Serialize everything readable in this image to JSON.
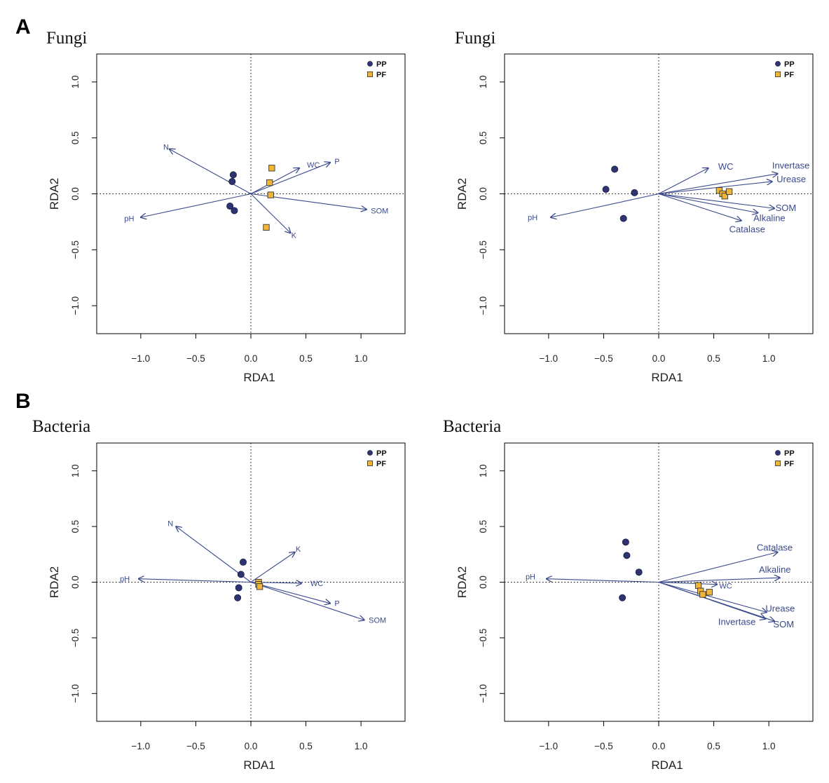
{
  "panels": [
    {
      "letter": "A"
    },
    {
      "letter": "B"
    }
  ],
  "colors": {
    "PP": "#2e3470",
    "PF": "#f2b534",
    "arrow": "#3a4a8c",
    "axis": "#000000"
  },
  "chart_data": [
    {
      "type": "scatter",
      "title": "Fungi",
      "xlabel": "RDA1",
      "ylabel": "RDA2",
      "xticks": [
        -1.0,
        -0.5,
        0.0,
        0.5,
        1.0
      ],
      "yticks": [
        -1.0,
        -0.5,
        0.0,
        0.5,
        1.0
      ],
      "xlim": [
        -1.4,
        1.4
      ],
      "ylim": [
        -1.25,
        1.25
      ],
      "legend": [
        {
          "name": "PP",
          "shape": "circle"
        },
        {
          "name": "PF",
          "shape": "square"
        }
      ],
      "series": [
        {
          "name": "PP",
          "points": [
            [
              -0.16,
              0.17
            ],
            [
              -0.17,
              0.11
            ],
            [
              -0.19,
              -0.11
            ],
            [
              -0.15,
              -0.15
            ]
          ]
        },
        {
          "name": "PF",
          "points": [
            [
              0.19,
              0.23
            ],
            [
              0.17,
              0.1
            ],
            [
              0.18,
              -0.01
            ],
            [
              0.14,
              -0.3
            ]
          ]
        }
      ],
      "vectors": [
        {
          "label": "N",
          "x": -0.74,
          "y": 0.4,
          "lx": -0.77,
          "ly": 0.42
        },
        {
          "label": "WC",
          "x": 0.44,
          "y": 0.23,
          "lx": 0.51,
          "ly": 0.26
        },
        {
          "label": "P",
          "x": 0.72,
          "y": 0.28,
          "lx": 0.76,
          "ly": 0.29
        },
        {
          "label": "SOM",
          "x": 1.05,
          "y": -0.14,
          "lx": 1.09,
          "ly": -0.15
        },
        {
          "label": "K",
          "x": 0.36,
          "y": -0.35,
          "lx": 0.39,
          "ly": -0.37
        },
        {
          "label": "pH",
          "x": -1.0,
          "y": -0.21,
          "lx": -1.06,
          "ly": -0.22
        }
      ]
    },
    {
      "type": "scatter",
      "title": "Fungi",
      "xlabel": "RDA1",
      "ylabel": "RDA2",
      "xticks": [
        -1.0,
        -0.5,
        0.0,
        0.5,
        1.0
      ],
      "yticks": [
        -1.0,
        -0.5,
        0.0,
        0.5,
        1.0
      ],
      "xlim": [
        -1.4,
        1.4
      ],
      "ylim": [
        -1.25,
        1.25
      ],
      "legend": [
        {
          "name": "PP",
          "shape": "circle"
        },
        {
          "name": "PF",
          "shape": "square"
        }
      ],
      "series": [
        {
          "name": "PP",
          "points": [
            [
              -0.4,
              0.22
            ],
            [
              -0.48,
              0.04
            ],
            [
              -0.22,
              0.01
            ],
            [
              -0.32,
              -0.22
            ]
          ]
        },
        {
          "name": "PF",
          "points": [
            [
              0.55,
              0.03
            ],
            [
              0.58,
              0.0
            ],
            [
              0.6,
              -0.02
            ],
            [
              0.64,
              0.02
            ]
          ]
        }
      ],
      "vectors": [
        {
          "label": "WC",
          "x": 0.45,
          "y": 0.23,
          "lx": 0.54,
          "ly": 0.24
        },
        {
          "label": "Invertase",
          "x": 1.08,
          "y": 0.18,
          "lx": 1.03,
          "ly": 0.25
        },
        {
          "label": "Urease",
          "x": 1.03,
          "y": 0.11,
          "lx": 1.07,
          "ly": 0.13
        },
        {
          "label": "SOM",
          "x": 1.05,
          "y": -0.13,
          "lx": 1.06,
          "ly": -0.13
        },
        {
          "label": "Alkaline",
          "x": 0.9,
          "y": -0.17,
          "lx": 0.86,
          "ly": -0.22
        },
        {
          "label": "Catalase",
          "x": 0.75,
          "y": -0.24,
          "lx": 0.64,
          "ly": -0.32
        },
        {
          "label": "pH",
          "x": -0.98,
          "y": -0.21,
          "lx": -1.1,
          "ly": -0.21
        }
      ]
    },
    {
      "type": "scatter",
      "title": "Bacteria",
      "xlabel": "RDA1",
      "ylabel": "RDA2",
      "xticks": [
        -1.0,
        -0.5,
        0.0,
        0.5,
        1.0
      ],
      "yticks": [
        -1.0,
        -0.5,
        0.0,
        0.5,
        1.0
      ],
      "xlim": [
        -1.4,
        1.4
      ],
      "ylim": [
        -1.25,
        1.25
      ],
      "legend": [
        {
          "name": "PP",
          "shape": "circle"
        },
        {
          "name": "PF",
          "shape": "square"
        }
      ],
      "series": [
        {
          "name": "PP",
          "points": [
            [
              -0.07,
              0.18
            ],
            [
              -0.09,
              0.07
            ],
            [
              -0.11,
              -0.05
            ],
            [
              -0.12,
              -0.14
            ]
          ]
        },
        {
          "name": "PF",
          "points": [
            [
              0.07,
              0.0
            ],
            [
              0.07,
              -0.02
            ],
            [
              0.08,
              -0.04
            ]
          ]
        }
      ],
      "vectors": [
        {
          "label": "N",
          "x": -0.68,
          "y": 0.5,
          "lx": -0.73,
          "ly": 0.53
        },
        {
          "label": "K",
          "x": 0.4,
          "y": 0.27,
          "lx": 0.43,
          "ly": 0.3
        },
        {
          "label": "WC",
          "x": 0.46,
          "y": -0.01,
          "lx": 0.54,
          "ly": -0.01
        },
        {
          "label": "P",
          "x": 0.72,
          "y": -0.19,
          "lx": 0.76,
          "ly": -0.19
        },
        {
          "label": "SOM",
          "x": 1.03,
          "y": -0.34,
          "lx": 1.07,
          "ly": -0.34
        },
        {
          "label": "pH",
          "x": -1.02,
          "y": 0.03,
          "lx": -1.1,
          "ly": 0.03
        }
      ]
    },
    {
      "type": "scatter",
      "title": "Bacteria",
      "xlabel": "RDA1",
      "ylabel": "RDA2",
      "xticks": [
        -1.0,
        -0.5,
        0.0,
        0.5,
        1.0
      ],
      "yticks": [
        -1.0,
        -0.5,
        0.0,
        0.5,
        1.0
      ],
      "xlim": [
        -1.4,
        1.4
      ],
      "ylim": [
        -1.25,
        1.25
      ],
      "legend": [
        {
          "name": "PP",
          "shape": "circle"
        },
        {
          "name": "PF",
          "shape": "square"
        }
      ],
      "series": [
        {
          "name": "PP",
          "points": [
            [
              -0.3,
              0.36
            ],
            [
              -0.29,
              0.24
            ],
            [
              -0.18,
              0.09
            ],
            [
              -0.33,
              -0.14
            ]
          ]
        },
        {
          "name": "PF",
          "points": [
            [
              0.36,
              -0.03
            ],
            [
              0.38,
              -0.08
            ],
            [
              0.4,
              -0.11
            ],
            [
              0.46,
              -0.09
            ]
          ]
        }
      ],
      "vectors": [
        {
          "label": "Catalase",
          "x": 1.08,
          "y": 0.27,
          "lx": 0.89,
          "ly": 0.31
        },
        {
          "label": "Alkaline",
          "x": 1.1,
          "y": 0.04,
          "lx": 0.91,
          "ly": 0.11
        },
        {
          "label": "WC",
          "x": 0.53,
          "y": -0.02,
          "lx": 0.55,
          "ly": -0.03
        },
        {
          "label": "Urease",
          "x": 0.98,
          "y": -0.27,
          "lx": 0.97,
          "ly": -0.24
        },
        {
          "label": "Invertase",
          "x": 0.97,
          "y": -0.33,
          "lx": 0.54,
          "ly": -0.36
        },
        {
          "label": "SOM",
          "x": 1.05,
          "y": -0.35,
          "lx": 1.04,
          "ly": -0.38
        },
        {
          "label": "pH",
          "x": -1.02,
          "y": 0.03,
          "lx": -1.12,
          "ly": 0.05
        }
      ]
    }
  ]
}
